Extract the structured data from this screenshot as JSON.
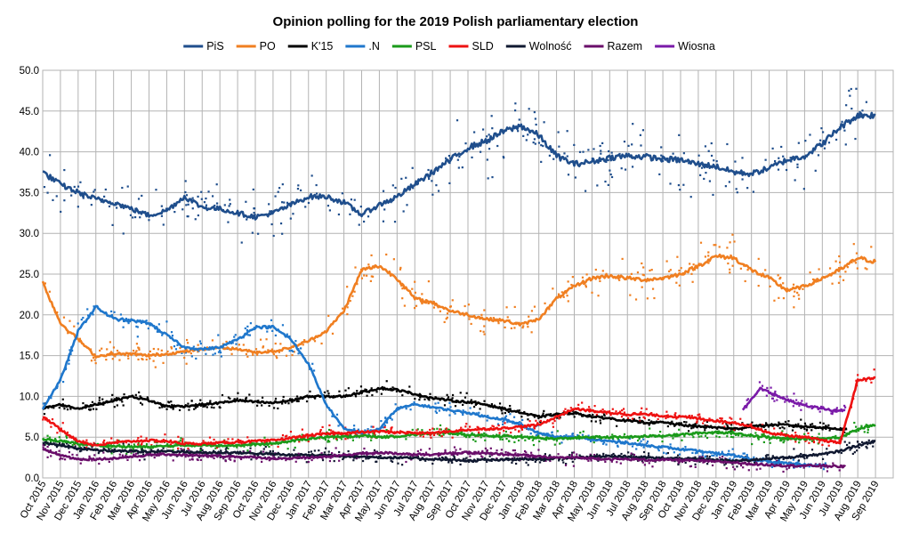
{
  "chart_data": {
    "type": "line",
    "title": "Opinion polling for the 2019 Polish parliamentary election",
    "ylim": [
      0,
      50
    ],
    "yticks": [
      "0.0",
      "5.0",
      "10.0",
      "15.0",
      "20.0",
      "25.0",
      "30.0",
      "35.0",
      "40.0",
      "45.0",
      "50.0"
    ],
    "x_months": [
      "Oct 2015",
      "Nov 2015",
      "Dec 2015",
      "Jan 2016",
      "Feb 2016",
      "Mar 2016",
      "Apr 2016",
      "May 2016",
      "Jun 2016",
      "Jul 2016",
      "Aug 2016",
      "Sep 2016",
      "Oct 2016",
      "Nov 2016",
      "Dec 2016",
      "Jan 2017",
      "Feb 2017",
      "Mar 2017",
      "Apr 2017",
      "May 2017",
      "Jun 2017",
      "Jul 2017",
      "Aug 2017",
      "Sep 2017",
      "Oct 2017",
      "Nov 2017",
      "Dec 2017",
      "Jan 2018",
      "Feb 2018",
      "Mar 2018",
      "Apr 2018",
      "May 2018",
      "Jun 2018",
      "Jul 2018",
      "Aug 2018",
      "Sep 2018",
      "Oct 2018",
      "Nov 2018",
      "Dec 2018",
      "Jan 2019",
      "Feb 2019",
      "Mar 2019",
      "Apr 2019",
      "May 2019",
      "Jun 2019",
      "Jul 2019",
      "Aug 2019",
      "Sep 2019"
    ],
    "x_range_months": [
      0,
      48
    ],
    "grid": true,
    "legend_position": "top",
    "series": [
      {
        "name": "PiS",
        "color": "#1f4e8c",
        "start": 0,
        "values": [
          37.5,
          36,
          35,
          34.2,
          33.8,
          33,
          32.2,
          32.8,
          34.5,
          33.2,
          33,
          32.5,
          32,
          32.5,
          33.5,
          34.5,
          34.5,
          33.8,
          32.3,
          33.5,
          34.5,
          36,
          37.5,
          39,
          40.5,
          41.3,
          42.5,
          43.2,
          42,
          39.5,
          38.5,
          38.8,
          39.3,
          39.5,
          39.4,
          39.1,
          39,
          38.5,
          38.2,
          37.5,
          37.3,
          38,
          39,
          39.5,
          41,
          43,
          44.5,
          44.5
        ]
      },
      {
        "name": "PO",
        "color": "#f07f21",
        "start": 0,
        "values": [
          24,
          19,
          17,
          14.9,
          15.2,
          15.2,
          15,
          15.2,
          15.5,
          15.8,
          16,
          15.8,
          15.4,
          15.5,
          16,
          16.8,
          18,
          20.5,
          25.5,
          26,
          24.5,
          22,
          21.5,
          20.5,
          20,
          19.5,
          19.3,
          18.8,
          19.5,
          22,
          23.5,
          24.5,
          24.8,
          24.5,
          24.3,
          24.5,
          25,
          26,
          27.2,
          27,
          25.5,
          24.5,
          23,
          23.5,
          24.5,
          25.5,
          27,
          26.5
        ]
      },
      {
        "name": "K'15",
        "color": "#000000",
        "start": 0,
        "values": [
          8.5,
          9,
          8.5,
          9,
          9.5,
          10,
          9.5,
          8.8,
          8.8,
          9,
          9.2,
          9.5,
          9.3,
          9.2,
          9.5,
          10,
          10,
          10,
          10.5,
          11,
          10.8,
          10.3,
          9.8,
          9.5,
          9.3,
          9,
          8.5,
          8,
          7.5,
          7.8,
          8,
          7.5,
          7.3,
          7,
          6.8,
          6.8,
          6.5,
          6.3,
          6.2,
          6,
          6.3,
          6.5,
          6.5,
          6.3,
          6.2,
          6,
          0,
          0
        ],
        "end": 45.4
      },
      {
        "name": ".N",
        "color": "#1f77cc",
        "start": 0,
        "values": [
          8.5,
          12,
          18,
          21,
          19.5,
          19.3,
          19,
          17.5,
          16,
          15.8,
          16,
          17,
          18.5,
          18.5,
          17,
          14,
          9,
          6,
          5.5,
          6,
          8.5,
          9,
          8.7,
          8.3,
          8,
          7.5,
          7.2,
          6.5,
          5.5,
          5,
          5,
          4.7,
          4.5,
          4.3,
          4,
          3.8,
          3.5,
          3.3,
          3,
          2.8,
          2.3,
          2,
          1.8,
          1.6,
          1.5,
          0,
          0,
          0
        ],
        "end": 44.2
      },
      {
        "name": "PSL",
        "color": "#1a9a1a",
        "start": 0,
        "values": [
          4.8,
          4.5,
          4.2,
          4,
          3.9,
          3.8,
          3.8,
          3.9,
          4,
          4,
          4,
          4,
          4.1,
          4.2,
          4.5,
          4.8,
          5,
          5,
          5.2,
          5,
          5.1,
          5.3,
          5.5,
          5.5,
          5.3,
          5.2,
          5.1,
          5,
          4.9,
          4.8,
          4.9,
          5,
          5,
          5,
          5.1,
          5.2,
          5.3,
          5.5,
          5.6,
          5.5,
          5.2,
          5,
          4.8,
          4.8,
          4.8,
          5,
          6,
          6.5
        ]
      },
      {
        "name": "SLD",
        "color": "#ee1111",
        "start": 0,
        "values": [
          7.5,
          6,
          4.5,
          4,
          4.3,
          4.5,
          4.6,
          4.5,
          4.2,
          4.2,
          4.3,
          4.4,
          4.5,
          4.6,
          4.9,
          5.2,
          5.4,
          5.5,
          5.6,
          5.7,
          5.6,
          5.5,
          5.5,
          5.7,
          5.9,
          6,
          6.1,
          6.3,
          6.5,
          7.5,
          8.5,
          8.2,
          8,
          7.8,
          7.8,
          7.6,
          7.5,
          7.3,
          7,
          6.8,
          6.3,
          5.5,
          5.2,
          5,
          4.6,
          4.3,
          12,
          12.3
        ],
        "start_month": 0
      },
      {
        "name": "Wolność",
        "color": "#101830",
        "start": 0,
        "values": [
          4.3,
          4,
          3.6,
          3.4,
          3.3,
          3.3,
          3.2,
          3.3,
          3.2,
          3.1,
          3.1,
          3.1,
          3,
          2.9,
          2.8,
          2.8,
          2.8,
          2.7,
          2.6,
          2.5,
          2.5,
          2.4,
          2.3,
          2.2,
          2.1,
          2.2,
          2.2,
          2.3,
          2.3,
          2.4,
          2.5,
          2.6,
          2.7,
          2.6,
          2.5,
          2.4,
          2.4,
          2.3,
          2.2,
          2.1,
          2.2,
          2.4,
          2.5,
          2.7,
          2.9,
          3.3,
          4,
          4.5
        ]
      },
      {
        "name": "Razem",
        "color": "#6a0e6a",
        "start": 0,
        "values": [
          3.5,
          2.8,
          2.3,
          2.3,
          2.4,
          2.6,
          2.8,
          2.9,
          2.8,
          2.7,
          2.7,
          2.6,
          2.5,
          2.4,
          2.4,
          2.5,
          2.6,
          2.8,
          3,
          3.1,
          3,
          2.9,
          2.9,
          3,
          3.1,
          3,
          2.9,
          2.8,
          2.6,
          2.5,
          2.5,
          2.4,
          2.3,
          2.3,
          2.2,
          2.2,
          2.2,
          2.1,
          2,
          1.9,
          1.7,
          1.6,
          1.5,
          1.5,
          1.5,
          1.4,
          0,
          0
        ],
        "end": 45.3
      },
      {
        "name": "Wiosna",
        "color": "#7a1aa8",
        "start": 39.5,
        "values": [
          8.3,
          11,
          10,
          9.2,
          8.7,
          8.3,
          7.8
        ],
        "end": 45.3
      }
    ]
  }
}
